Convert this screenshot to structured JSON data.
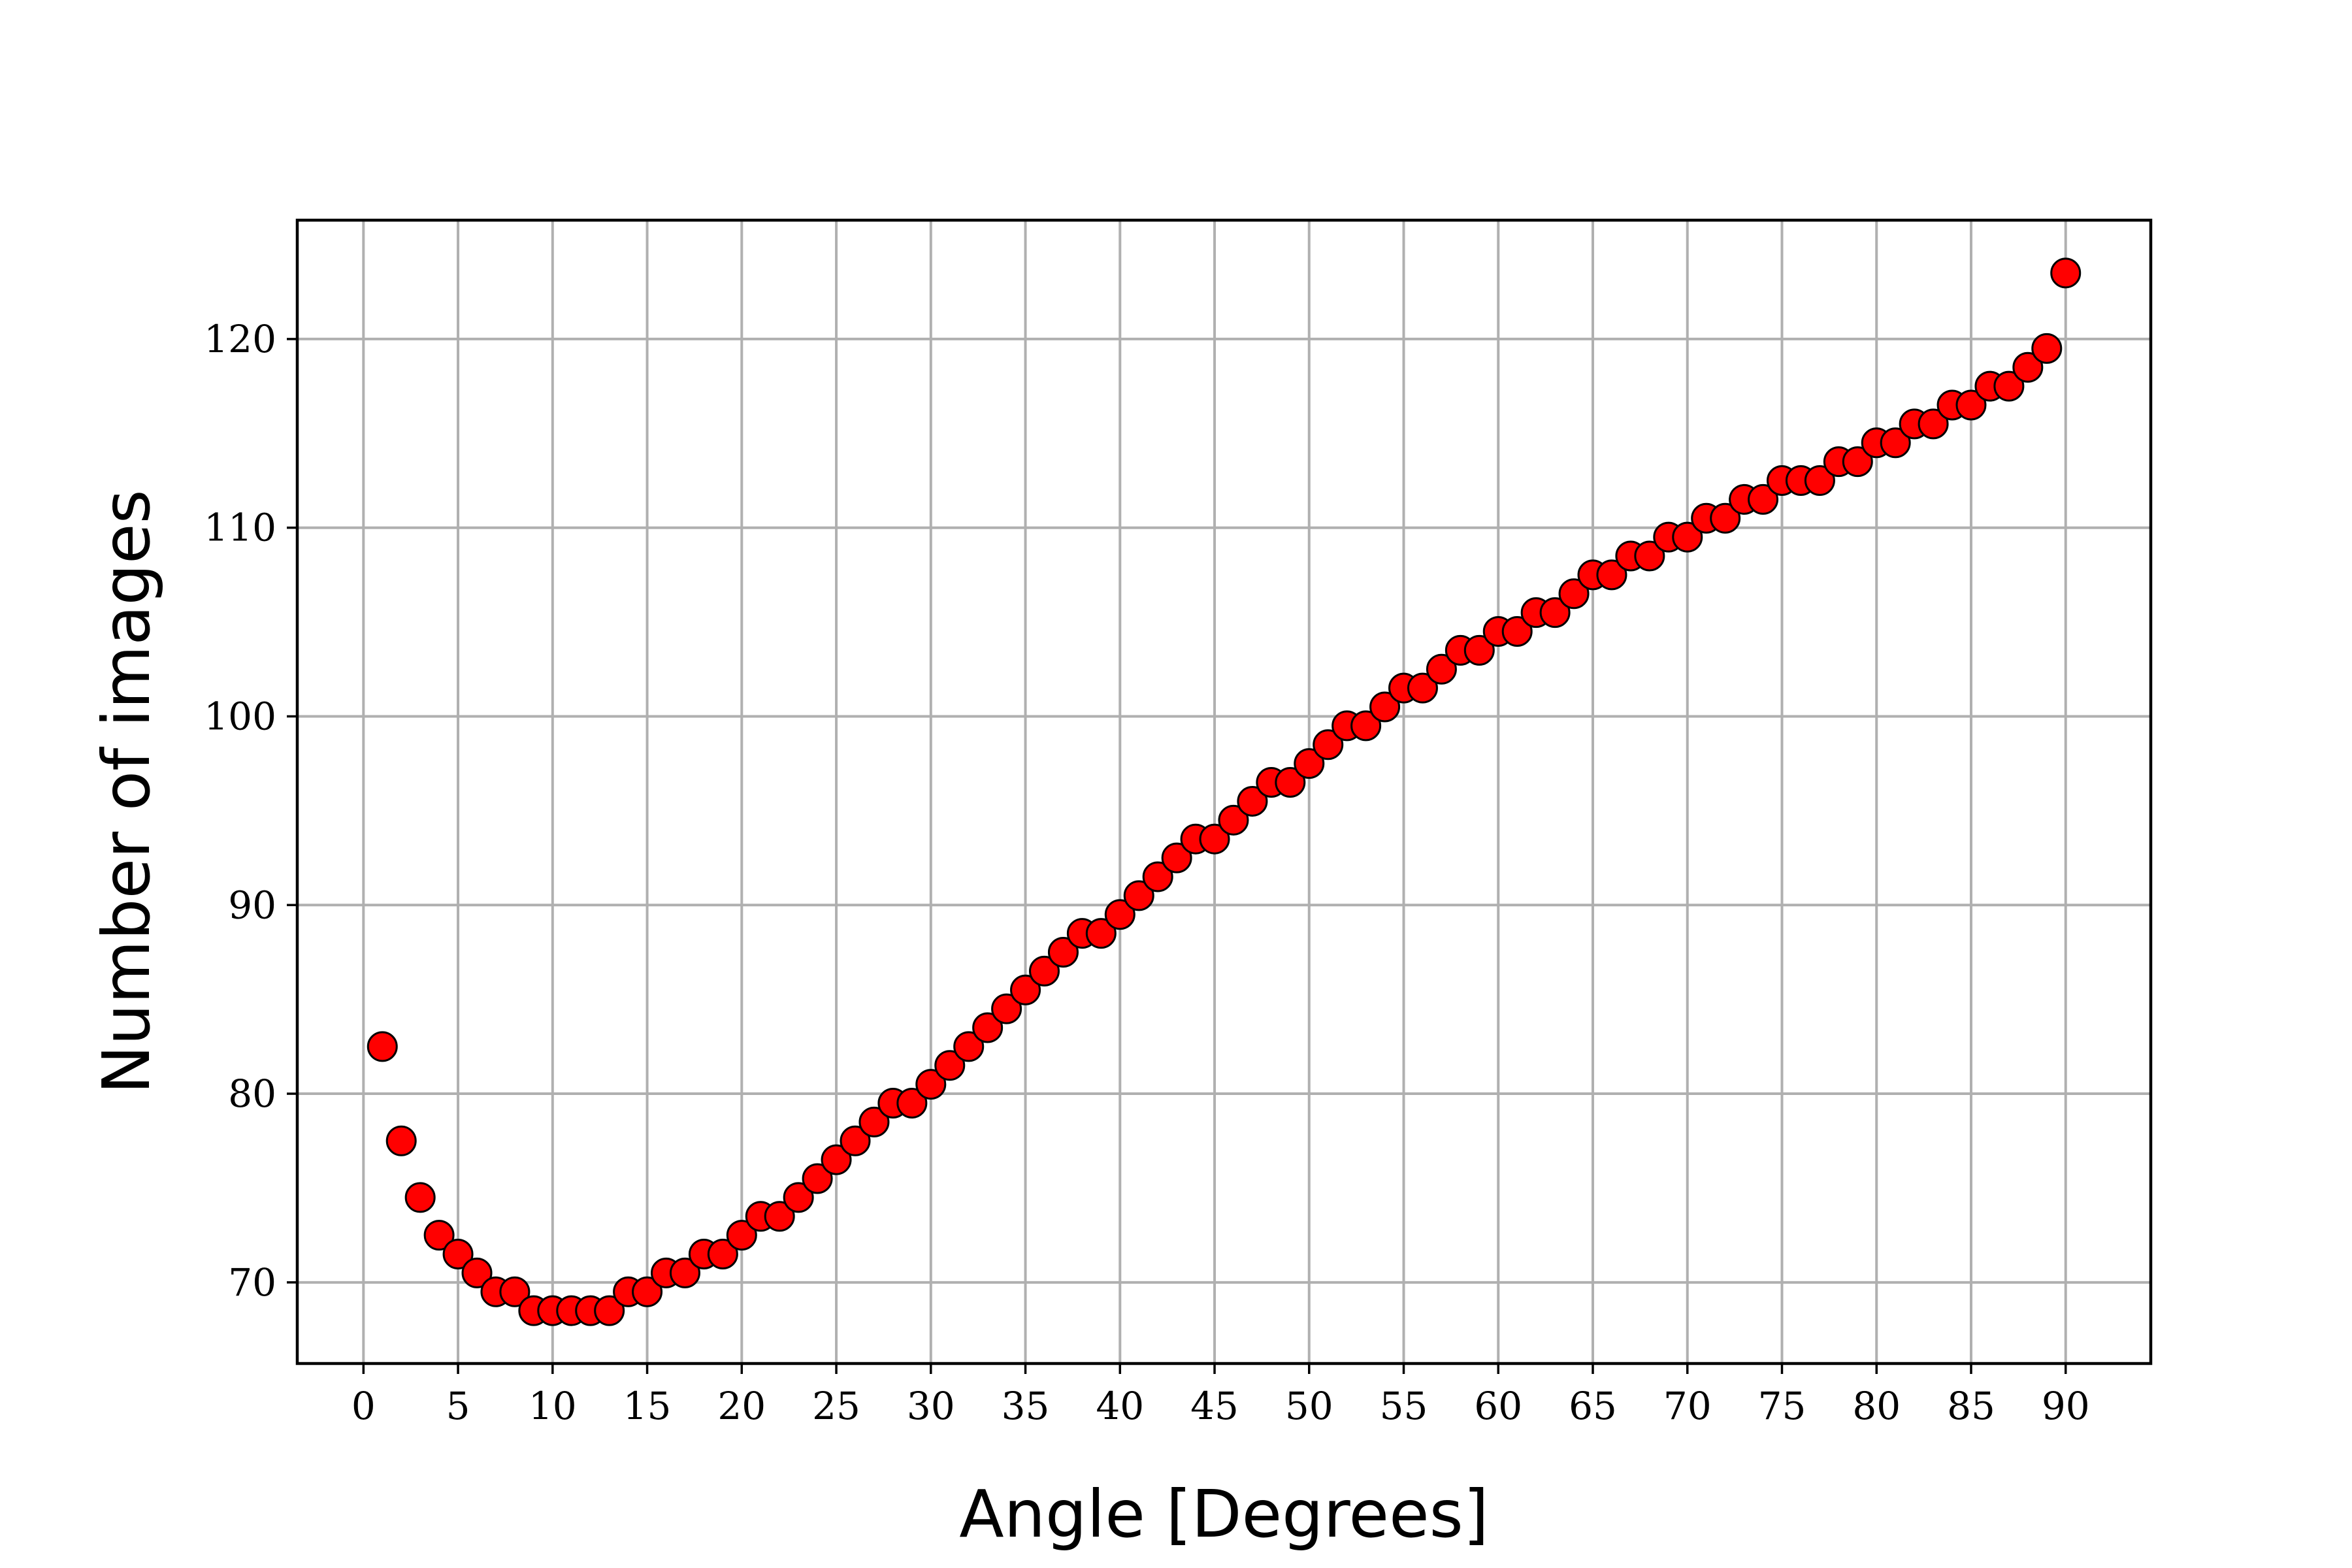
{
  "chart_data": {
    "type": "scatter",
    "xlabel": "Angle [Degrees]",
    "ylabel": "Number of images",
    "xlim": [
      -3.5,
      94.5
    ],
    "ylim": [
      65.7,
      126.3
    ],
    "xticks": [
      0,
      5,
      10,
      15,
      20,
      25,
      30,
      35,
      40,
      45,
      50,
      55,
      60,
      65,
      70,
      75,
      80,
      85,
      90
    ],
    "yticks": [
      70,
      80,
      90,
      100,
      110,
      120
    ],
    "grid": true,
    "legend": "none",
    "marker_color": "#ff0000",
    "marker_edge_color": "#000000",
    "series": [
      {
        "x": [
          1,
          2,
          3,
          4,
          5,
          6,
          7,
          8,
          9,
          10,
          11,
          12,
          13,
          14,
          15,
          16,
          17,
          18,
          19,
          20,
          21,
          22,
          23,
          24,
          25,
          26,
          27,
          28,
          29,
          30,
          31,
          32,
          33,
          34,
          35,
          36,
          37,
          38,
          39,
          40,
          41,
          42,
          43,
          44,
          45,
          46,
          47,
          48,
          49,
          50,
          51,
          52,
          53,
          54,
          55,
          56,
          57,
          58,
          59,
          60,
          61,
          62,
          63,
          64,
          65,
          66,
          67,
          68,
          69,
          70,
          71,
          72,
          73,
          74,
          75,
          76,
          77,
          78,
          79,
          80,
          81,
          82,
          83,
          84,
          85,
          86,
          87,
          88,
          89,
          90
        ],
        "y": [
          82.5,
          77.5,
          74.5,
          72.5,
          71.5,
          70.5,
          69.5,
          69.5,
          68.5,
          68.5,
          68.5,
          68.5,
          68.5,
          69.5,
          69.5,
          70.5,
          70.5,
          71.5,
          71.5,
          72.5,
          73.5,
          73.5,
          74.5,
          75.5,
          76.5,
          77.5,
          78.5,
          79.5,
          79.5,
          80.5,
          81.5,
          82.5,
          83.5,
          84.5,
          85.5,
          86.5,
          87.5,
          88.5,
          88.5,
          89.5,
          90.5,
          91.5,
          92.5,
          93.5,
          93.5,
          94.5,
          95.5,
          96.5,
          96.5,
          97.5,
          98.5,
          99.5,
          99.5,
          100.5,
          101.5,
          101.5,
          102.5,
          103.5,
          103.5,
          104.5,
          104.5,
          105.5,
          105.5,
          106.5,
          107.5,
          107.5,
          108.5,
          108.5,
          109.5,
          109.5,
          110.5,
          110.5,
          111.5,
          111.5,
          112.5,
          112.5,
          112.5,
          113.5,
          113.5,
          114.5,
          114.5,
          115.5,
          115.5,
          116.5,
          116.5,
          117.5,
          117.5,
          118.5,
          119.5,
          123.5
        ]
      }
    ]
  }
}
